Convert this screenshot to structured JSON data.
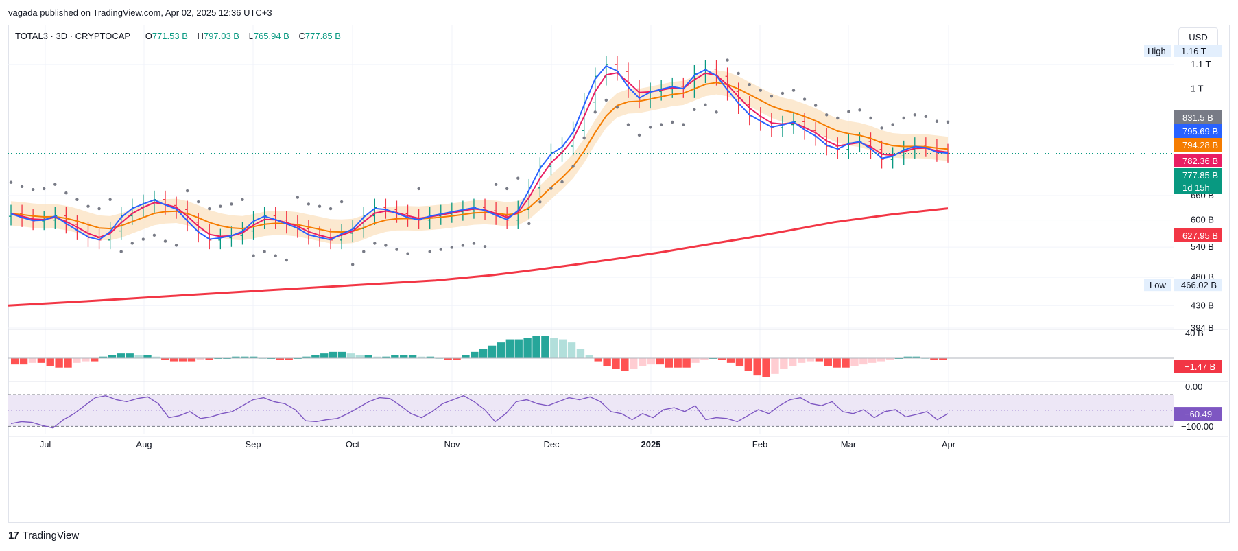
{
  "header": {
    "credit": "vagada published on TradingView.com, Apr 02, 2025 12:36 UTC+3"
  },
  "legend": {
    "symbol": "TOTAL3 · 3D · CRYPTOCAP",
    "open_label": "O",
    "open": "771.53 B",
    "high_label": "H",
    "high": "797.03 B",
    "low_label": "L",
    "low": "765.94 B",
    "close_label": "C",
    "close": "777.85 B"
  },
  "currency_button": "USD",
  "footer": {
    "logo": "17",
    "brand": "TradingView"
  },
  "colors": {
    "up": "#089981",
    "down": "#f23645",
    "sma_long": "#f23645",
    "ema_fast": "#2962ff",
    "ema_mid": "#e91e63",
    "ema_slow": "#f57c00",
    "band": "#fbe1c0",
    "psar": "#787b86",
    "rsi": "#7e57c2",
    "rsi_band": "#ede7f6",
    "hist_up_strong": "#26a69a",
    "hist_up_weak": "#b2dfdb",
    "hist_down_strong": "#ff5252",
    "hist_down_weak": "#ffcdd2"
  },
  "chart_data": [
    {
      "type": "candlestick",
      "title": "TOTAL3 · 3D · CRYPTOCAP",
      "scale": "log",
      "x_ticks": [
        "Jul",
        "Aug",
        "Sep",
        "Oct",
        "Nov",
        "Dec",
        "2025",
        "Feb",
        "Mar",
        "Apr"
      ],
      "y_ticks": [
        "1.1 T",
        "1 T",
        "660 B",
        "600 B",
        "540 B",
        "480 B",
        "430 B",
        "394 B"
      ],
      "high_marker": {
        "label": "High",
        "value": "1.16 T"
      },
      "low_marker": {
        "label": "Low",
        "value": "466.02 B"
      },
      "price_badges": [
        {
          "value": "831.5 B",
          "color": "#787b86"
        },
        {
          "value": "795.69 B",
          "color": "#2962ff"
        },
        {
          "value": "794.28 B",
          "color": "#f57c00"
        },
        {
          "value": "782.36 B",
          "color": "#e91e63"
        },
        {
          "value": "777.85 B",
          "color": "#089981"
        },
        {
          "value": "1d 15h",
          "color": "#089981"
        },
        {
          "value": "627.95 B",
          "color": "#f23645"
        }
      ],
      "closes_B": [
        615,
        605,
        598,
        600,
        610,
        590,
        575,
        560,
        555,
        575,
        610,
        630,
        640,
        650,
        635,
        625,
        595,
        570,
        555,
        560,
        565,
        575,
        600,
        610,
        600,
        590,
        580,
        565,
        560,
        555,
        570,
        580,
        610,
        630,
        625,
        615,
        605,
        600,
        610,
        615,
        620,
        625,
        630,
        622,
        610,
        600,
        625,
        680,
        740,
        780,
        800,
        850,
        950,
        1050,
        1100,
        1070,
        1000,
        960,
        990,
        1000,
        1010,
        1000,
        1060,
        1080,
        1050,
        990,
        940,
        900,
        880,
        860,
        870,
        880,
        850,
        830,
        800,
        790,
        810,
        815,
        790,
        760,
        770,
        790,
        800,
        795,
        780,
        777.85
      ],
      "sma_long_B": [
        430,
        438,
        447,
        456,
        465,
        474,
        484,
        494,
        505,
        517,
        530,
        545,
        560,
        577,
        595,
        613,
        628
      ],
      "sma_long_days": [
        0,
        30,
        60,
        90,
        120,
        150,
        170,
        185,
        200,
        215,
        230,
        245,
        260,
        275,
        290,
        310,
        330
      ]
    },
    {
      "type": "bar",
      "title": "Momentum histogram",
      "y_ticks": [
        "40 B"
      ],
      "last_value": "−1.47 B",
      "values": [
        -4,
        -4,
        -3,
        -3,
        -5,
        -6,
        -6,
        -3,
        -2,
        -2,
        1,
        2,
        3,
        3,
        2,
        2,
        1,
        -1,
        -2,
        -2,
        -2,
        -1,
        -1,
        0,
        0,
        1,
        1,
        1,
        0,
        0,
        -1,
        -1,
        0,
        1,
        2,
        3,
        4,
        4,
        3,
        2,
        2,
        1,
        1,
        2,
        2,
        2,
        1,
        1,
        0,
        -1,
        -1,
        2,
        4,
        6,
        8,
        10,
        12,
        12,
        13,
        14,
        14,
        13,
        12,
        10,
        6,
        2,
        -2,
        -5,
        -7,
        -8,
        -7,
        -5,
        -4,
        -4,
        -6,
        -6,
        -6,
        -3,
        -1,
        0,
        -1,
        -3,
        -5,
        -8,
        -11,
        -12,
        -10,
        -7,
        -5,
        -3,
        -2,
        -2,
        -5,
        -6,
        -6,
        -5,
        -4,
        -3,
        -2,
        -1,
        0,
        1,
        1,
        0,
        -1,
        -1
      ]
    },
    {
      "type": "line",
      "title": "Oscillator",
      "y_ticks": [
        "0.00",
        "−100.00"
      ],
      "last_value": "−60.49",
      "values": [
        -85,
        -80,
        -82,
        -90,
        -96,
        -75,
        -60,
        -40,
        -20,
        -15,
        -25,
        -30,
        -22,
        -18,
        -35,
        -70,
        -65,
        -55,
        -72,
        -68,
        -60,
        -55,
        -40,
        -25,
        -20,
        -30,
        -35,
        -50,
        -78,
        -80,
        -75,
        -72,
        -60,
        -45,
        -30,
        -20,
        -22,
        -40,
        -60,
        -70,
        -55,
        -35,
        -25,
        -15,
        -30,
        -50,
        -80,
        -60,
        -30,
        -25,
        -35,
        -40,
        -30,
        -20,
        -25,
        -18,
        -30,
        -55,
        -60,
        -75,
        -60,
        -70,
        -50,
        -45,
        -55,
        -40,
        -75,
        -70,
        -72,
        -80,
        -65,
        -50,
        -60,
        -40,
        -25,
        -20,
        -35,
        -40,
        -30,
        -55,
        -60,
        -50,
        -70,
        -55,
        -50,
        -68,
        -62,
        -55,
        -75,
        -60
      ]
    }
  ]
}
